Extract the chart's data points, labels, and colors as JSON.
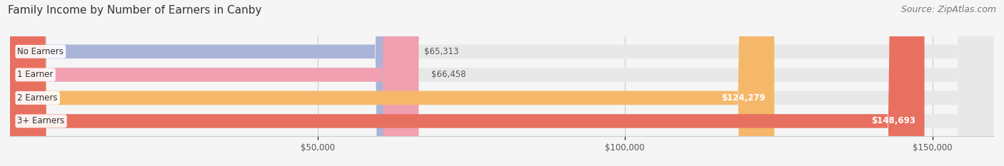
{
  "title": "Family Income by Number of Earners in Canby",
  "source": "Source: ZipAtlas.com",
  "categories": [
    "No Earners",
    "1 Earner",
    "2 Earners",
    "3+ Earners"
  ],
  "values": [
    65313,
    66458,
    124279,
    148693
  ],
  "bar_colors": [
    "#aab4d8",
    "#f0a0b0",
    "#f5b86a",
    "#e87060"
  ],
  "bar_label_colors": [
    "#555555",
    "#555555",
    "#ffffff",
    "#ffffff"
  ],
  "background_color": "#f5f5f5",
  "bar_bg_color": "#e8e8e8",
  "xlim": [
    0,
    160000
  ],
  "xticks": [
    50000,
    100000,
    150000
  ],
  "xtick_labels": [
    "$50,000",
    "$100,000",
    "$150,000"
  ],
  "title_fontsize": 11,
  "source_fontsize": 9,
  "bar_height": 0.6,
  "value_labels": [
    "$65,313",
    "$66,458",
    "$124,279",
    "$148,693"
  ]
}
